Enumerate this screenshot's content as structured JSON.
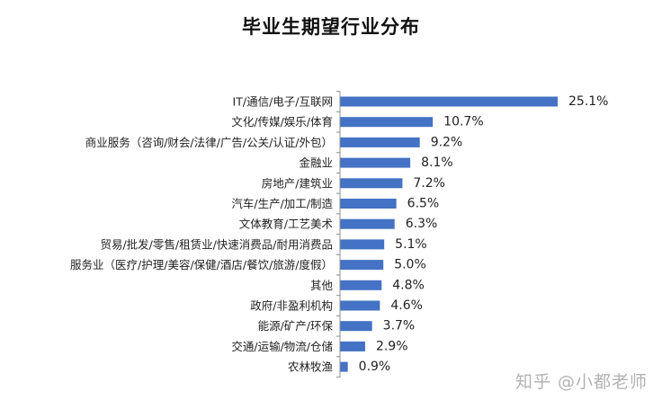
{
  "chart_data": {
    "type": "bar",
    "orientation": "horizontal",
    "title": "毕业生期望行业分布",
    "categories": [
      "IT/通信/电子/互联网",
      "文化/传媒/娱乐/体育",
      "商业服务（咨询/财会/法律/广告/公关/认证/外包）",
      "金融业",
      "房地产/建筑业",
      "汽车/生产/加工/制造",
      "文体教育/工艺美术",
      "贸易/批发/零售/租赁业/快速消费品/耐用消费品",
      "服务业（医疗/护理/美容/保健/酒店/餐饮/旅游/度假）",
      "其他",
      "政府/非盈利机构",
      "能源/矿产/环保",
      "交通/运输/物流/仓储",
      "农林牧渔"
    ],
    "values": [
      25.1,
      10.7,
      9.2,
      8.1,
      7.2,
      6.5,
      6.3,
      5.1,
      5.0,
      4.8,
      4.6,
      3.7,
      2.9,
      0.9
    ],
    "value_labels": [
      "25.1%",
      "10.7%",
      "9.2%",
      "8.1%",
      "7.2%",
      "6.5%",
      "6.3%",
      "5.1%",
      "5.0%",
      "4.8%",
      "4.6%",
      "3.7%",
      "2.9%",
      "0.9%"
    ],
    "xlim": [
      0,
      25.1
    ],
    "grid": false,
    "legend": "none",
    "bar_color": "#4472C4",
    "axis_color": "#8c8c8c"
  },
  "watermark": "知乎 @小都老师"
}
